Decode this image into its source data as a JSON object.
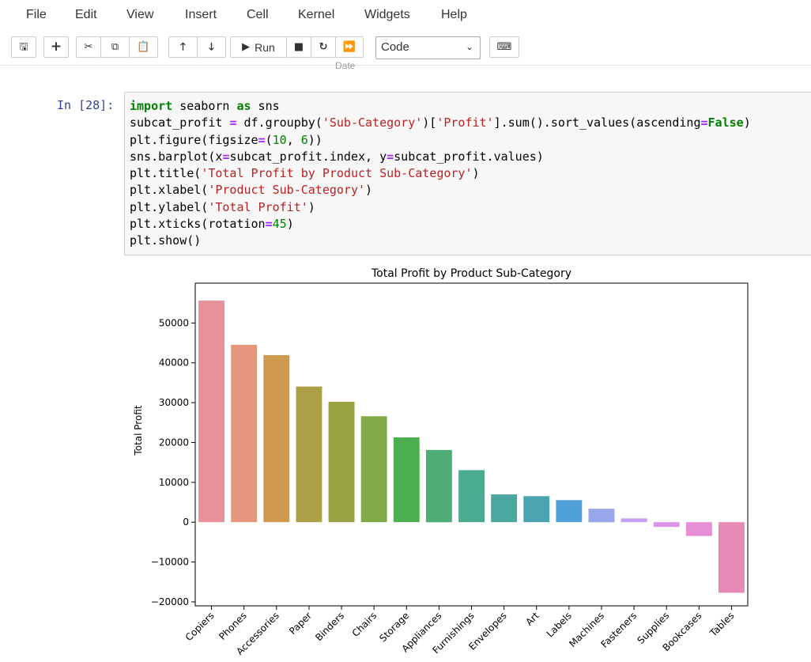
{
  "menu": [
    "File",
    "Edit",
    "View",
    "Insert",
    "Cell",
    "Kernel",
    "Widgets",
    "Help"
  ],
  "toolbar": {
    "save_icon": "save-icon",
    "add_icon": "plus-icon",
    "cut_icon": "scissors-icon",
    "copy_icon": "copy-icon",
    "paste_icon": "paste-icon",
    "up_icon": "arrow-up-icon",
    "down_icon": "arrow-down-icon",
    "run_label": "Run",
    "stop_icon": "stop-icon",
    "restart_icon": "restart-icon",
    "fastforward_icon": "fast-forward-icon",
    "cell_type": "Code",
    "keyboard_icon": "keyboard-icon"
  },
  "ghost_text": "Date",
  "cell": {
    "prompt": "In [28]:",
    "code_lines": [
      "import seaborn as sns",
      "subcat_profit = df.groupby('Sub-Category')['Profit'].sum().sort_values(ascending=False)",
      "plt.figure(figsize=(10, 6))",
      "sns.barplot(x=subcat_profit.index, y=subcat_profit.values)",
      "plt.title('Total Profit by Product Sub-Category')",
      "plt.xlabel('Product Sub-Category')",
      "plt.ylabel('Total Profit')",
      "plt.xticks(rotation=45)",
      "plt.show()"
    ]
  },
  "chart_data": {
    "type": "bar",
    "title": "Total Profit by Product Sub-Category",
    "xlabel": "",
    "ylabel": "Total Profit",
    "categories": [
      "Copiers",
      "Phones",
      "Accessories",
      "Paper",
      "Binders",
      "Chairs",
      "Storage",
      "Appliances",
      "Furnishings",
      "Envelopes",
      "Art",
      "Labels",
      "Machines",
      "Fasteners",
      "Supplies",
      "Bookcases",
      "Tables"
    ],
    "values": [
      55618,
      44516,
      41937,
      34054,
      30222,
      26590,
      21279,
      18138,
      13059,
      6964,
      6528,
      5546,
      3385,
      950,
      -1189,
      -3473,
      -17725
    ],
    "colors": [
      "#e8919b",
      "#e4977a",
      "#cf9a4d",
      "#ac9f46",
      "#9aa445",
      "#80aa45",
      "#4caf50",
      "#4ead75",
      "#4aab90",
      "#4ba8a1",
      "#4ca4b3",
      "#4fa0d9",
      "#97a8ea",
      "#c89ef0",
      "#dd94e6",
      "#e68fd6",
      "#e78ab8"
    ],
    "yticks": [
      -20000,
      -10000,
      0,
      10000,
      20000,
      30000,
      40000,
      50000
    ],
    "ylim": [
      -21000,
      60000
    ],
    "grid": false,
    "legend": false
  }
}
